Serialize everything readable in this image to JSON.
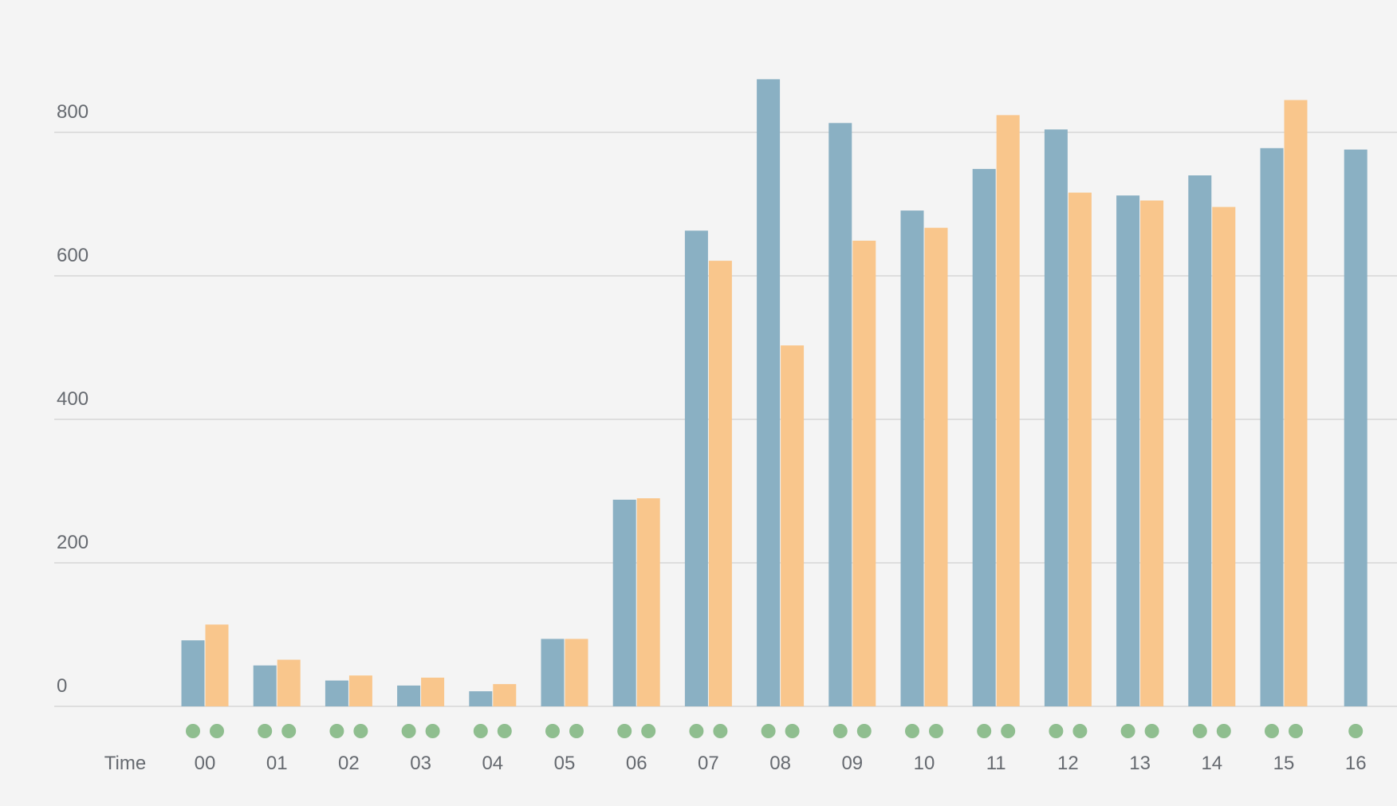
{
  "chart_data": {
    "type": "bar",
    "xlabel": "Time",
    "categories": [
      "00",
      "01",
      "02",
      "03",
      "04",
      "05",
      "06",
      "07",
      "08",
      "09",
      "10",
      "11",
      "12",
      "13",
      "14",
      "15",
      "16"
    ],
    "series": [
      {
        "color": "#8ab0c3",
        "values": [
          92,
          57,
          36,
          29,
          21,
          94,
          288,
          663,
          874,
          813,
          691,
          749,
          804,
          712,
          740,
          778,
          776
        ]
      },
      {
        "color": "#f9c68c",
        "values": [
          114,
          65,
          43,
          40,
          31,
          94,
          290,
          621,
          503,
          649,
          667,
          824,
          716,
          705,
          696,
          845,
          null
        ]
      }
    ],
    "markers": {
      "color": "#8fbe8f",
      "counts": [
        2,
        2,
        2,
        2,
        2,
        2,
        2,
        2,
        2,
        2,
        2,
        2,
        2,
        2,
        2,
        2,
        1
      ]
    },
    "y_ticks": [
      0,
      200,
      400,
      600,
      800
    ],
    "ylim": [
      0,
      900
    ],
    "grid": true,
    "colors": {
      "background": "#f4f4f4",
      "grid": "#d6d6d6",
      "text": "#666a70"
    }
  }
}
